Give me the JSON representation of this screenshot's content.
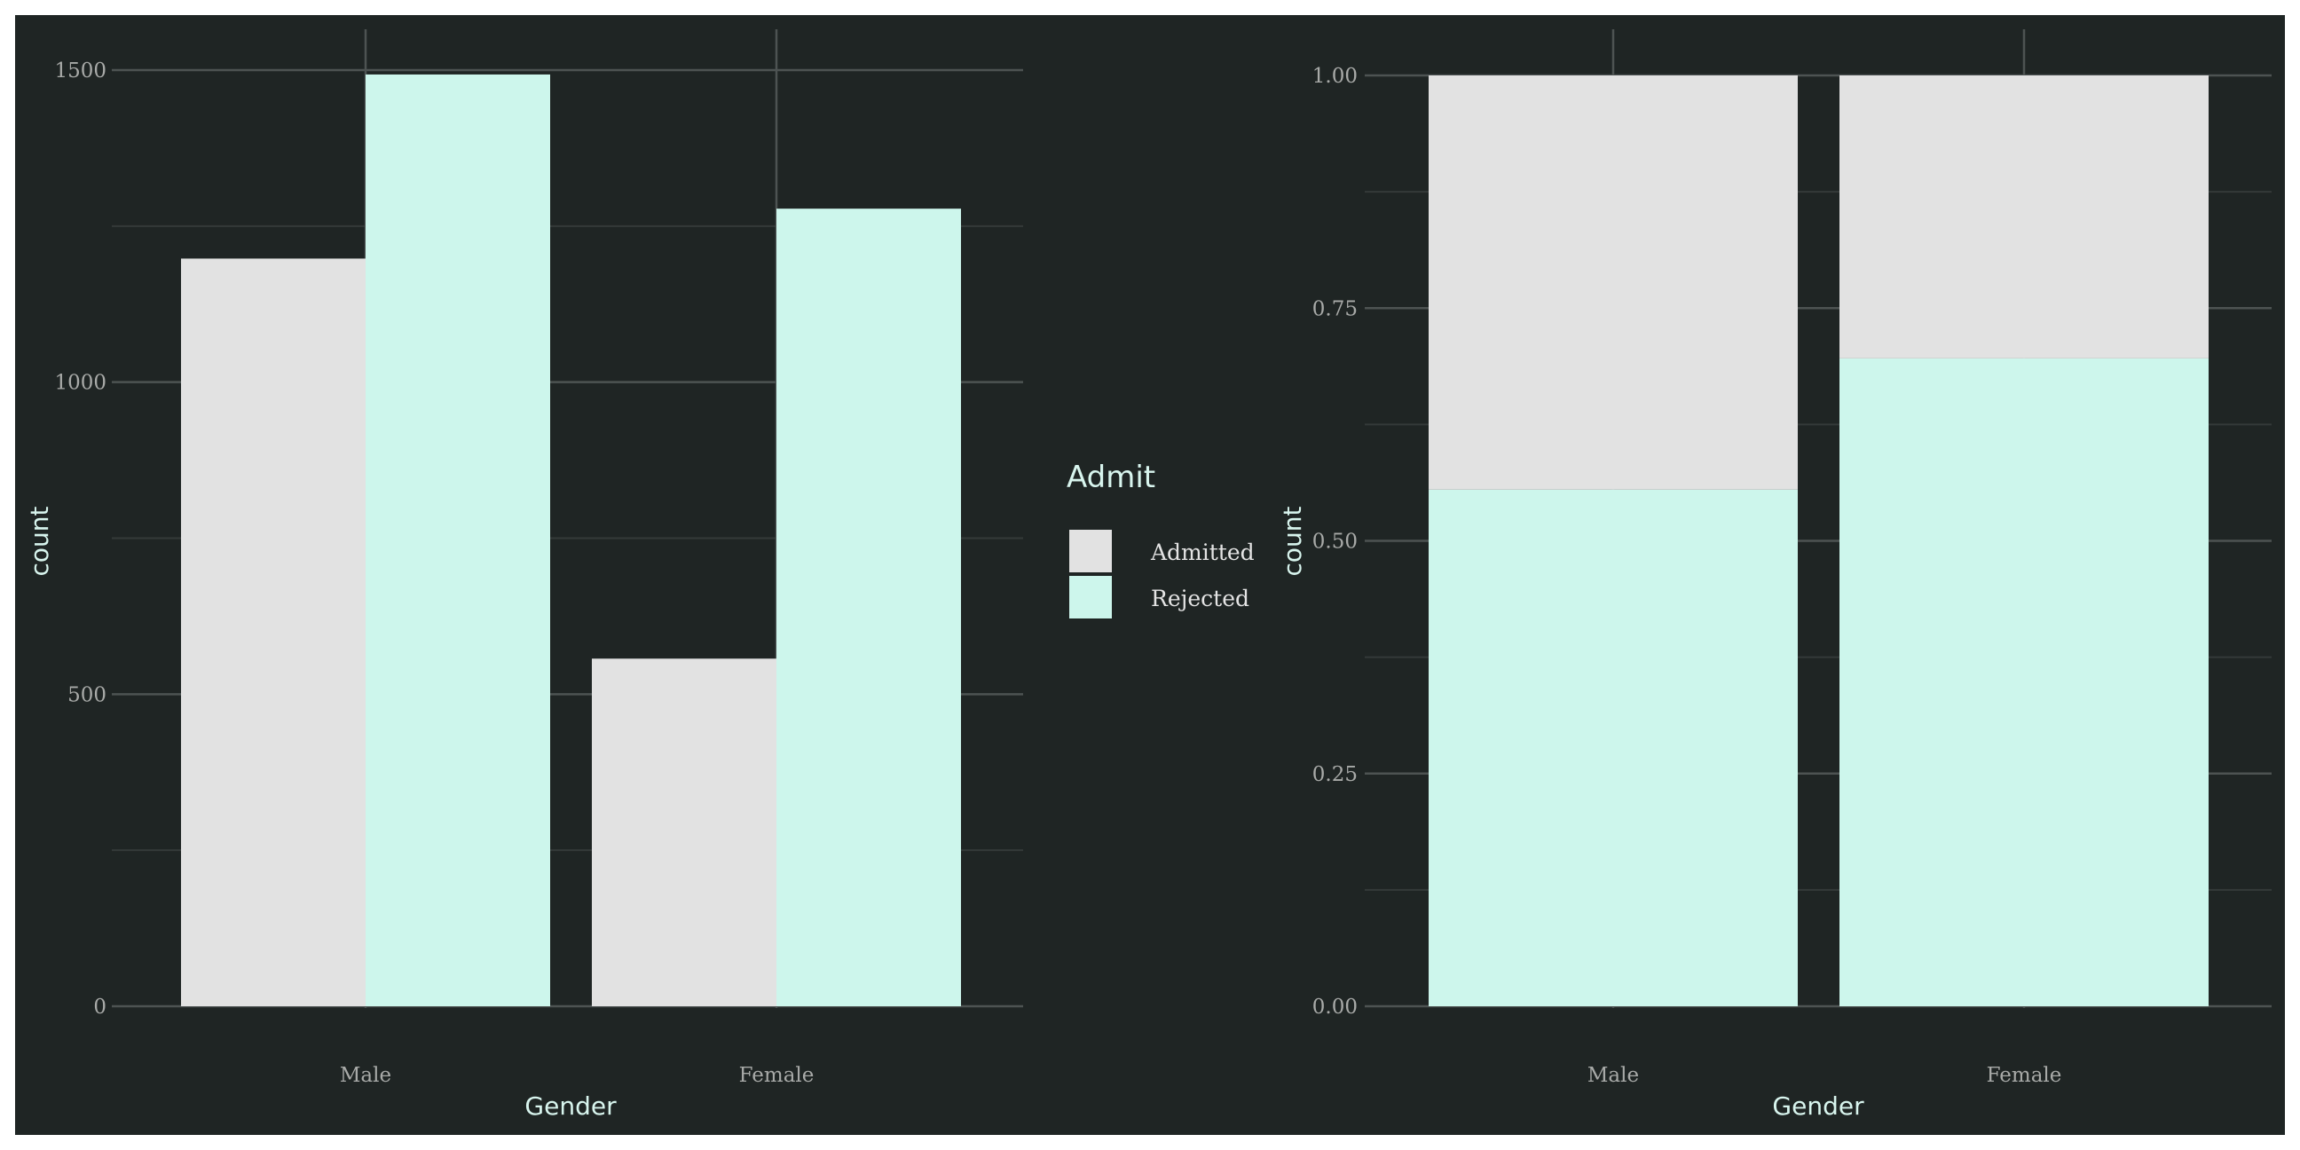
{
  "colors": {
    "background": "#1f2524",
    "border": "#ffffff",
    "grid_major": "#4d5352",
    "grid_minor": "#343a39",
    "admitted": "#e2e2e2",
    "rejected": "#cdf6ec",
    "tick_text": "#a8aaa8",
    "title_text": "#d8f5ee"
  },
  "legend": {
    "title": "Admit",
    "items": [
      {
        "label": "Admitted",
        "color": "#e2e2e2"
      },
      {
        "label": "Rejected",
        "color": "#cdf6ec"
      }
    ],
    "placement": "center, between panels"
  },
  "chart_data": [
    {
      "type": "bar",
      "position": "dodge",
      "categories": [
        "Male",
        "Female"
      ],
      "series": [
        {
          "name": "Admitted",
          "values": [
            1198,
            557
          ]
        },
        {
          "name": "Rejected",
          "values": [
            1493,
            1278
          ]
        }
      ],
      "xlabel": "Gender",
      "ylabel": "count",
      "ylim": [
        0,
        1500
      ],
      "yticks": [
        0,
        500,
        1000,
        1500
      ],
      "ytick_labels": [
        "0",
        "500",
        "1000",
        "1500"
      ],
      "grid": true
    },
    {
      "type": "bar",
      "position": "fill",
      "categories": [
        "Male",
        "Female"
      ],
      "series": [
        {
          "name": "Admitted",
          "values": [
            0.445,
            0.304
          ]
        },
        {
          "name": "Rejected",
          "values": [
            0.555,
            0.696
          ]
        }
      ],
      "xlabel": "Gender",
      "ylabel": "count",
      "ylim": [
        0,
        1
      ],
      "yticks": [
        0,
        0.25,
        0.5,
        0.75,
        1
      ],
      "ytick_labels": [
        "0.00",
        "0.25",
        "0.50",
        "0.75",
        "1.00"
      ],
      "grid": true
    }
  ]
}
